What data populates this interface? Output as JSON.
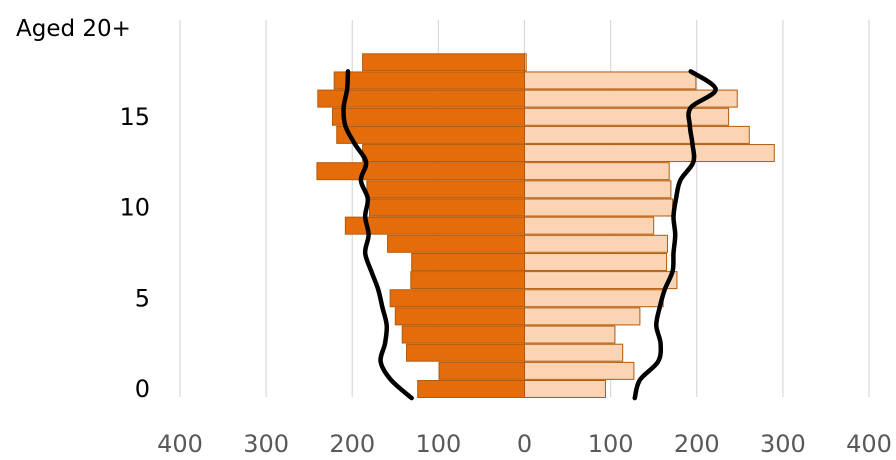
{
  "chart_data": {
    "type": "bar",
    "orientation": "horizontal",
    "subtype": "population-pyramid",
    "title": "Aged 20+",
    "x_ticks": [
      "400",
      "300",
      "200",
      "100",
      "0",
      "100",
      "200",
      "300",
      "400"
    ],
    "xlim": [
      -400,
      400
    ],
    "y_ticks": [
      "0",
      "5",
      "10",
      "15"
    ],
    "y_tick_values": [
      0,
      5,
      10,
      15
    ],
    "ylim": [
      -0.5,
      19.5
    ],
    "grid": "vertical",
    "categories": [
      0,
      1,
      2,
      3,
      4,
      5,
      6,
      7,
      8,
      9,
      10,
      11,
      12,
      13,
      14,
      15,
      16,
      17,
      18
    ],
    "series": [
      {
        "side": "left",
        "color": "#E46C0A",
        "edge": "#B35A0A",
        "values": [
          124,
          99,
          137,
          142,
          150,
          156,
          132,
          131,
          159,
          208,
          180,
          183,
          241,
          188,
          218,
          223,
          240,
          221,
          188
        ]
      },
      {
        "side": "right",
        "color": "#FBD4B4",
        "edge": "#B35A0A",
        "values": [
          94,
          127,
          114,
          105,
          134,
          161,
          177,
          165,
          166,
          150,
          172,
          170,
          168,
          290,
          261,
          237,
          247,
          199,
          2
        ]
      }
    ],
    "overlay_lines": [
      {
        "side": "left",
        "color": "#000000",
        "points": [
          [
            -131,
            -0.5
          ],
          [
            -155,
            0.5
          ],
          [
            -167,
            1.5
          ],
          [
            -162,
            2.5
          ],
          [
            -160,
            3.5
          ],
          [
            -165,
            4.5
          ],
          [
            -170,
            5.5
          ],
          [
            -178,
            6.5
          ],
          [
            -185,
            7.5
          ],
          [
            -181,
            8.5
          ],
          [
            -185,
            9.5
          ],
          [
            -182,
            10.5
          ],
          [
            -190,
            11.5
          ],
          [
            -184,
            12.5
          ],
          [
            -197,
            13.5
          ],
          [
            -208,
            14.5
          ],
          [
            -210,
            15.5
          ],
          [
            -206,
            16.5
          ],
          [
            -205,
            17.5
          ]
        ]
      },
      {
        "side": "right",
        "color": "#000000",
        "points": [
          [
            128,
            -0.5
          ],
          [
            134,
            0.5
          ],
          [
            155,
            1.5
          ],
          [
            158,
            2.5
          ],
          [
            153,
            3.5
          ],
          [
            157,
            4.5
          ],
          [
            163,
            5.5
          ],
          [
            172,
            6.5
          ],
          [
            173,
            7.5
          ],
          [
            175,
            8.5
          ],
          [
            173,
            9.5
          ],
          [
            176,
            10.5
          ],
          [
            181,
            11.5
          ],
          [
            196,
            12.5
          ],
          [
            195,
            13.5
          ],
          [
            192,
            14.5
          ],
          [
            193,
            15.5
          ],
          [
            222,
            16.5
          ],
          [
            193,
            17.5
          ]
        ]
      }
    ]
  }
}
